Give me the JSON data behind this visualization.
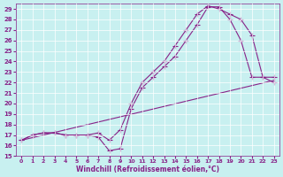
{
  "xlabel": "Windchill (Refroidissement éolien,°C)",
  "bg_color": "#c8f0f0",
  "line_color": "#882288",
  "xlim": [
    -0.5,
    23.5
  ],
  "ylim": [
    15,
    29.5
  ],
  "xticks": [
    0,
    1,
    2,
    3,
    4,
    5,
    6,
    7,
    8,
    9,
    10,
    11,
    12,
    13,
    14,
    15,
    16,
    17,
    18,
    19,
    20,
    21,
    22,
    23
  ],
  "yticks": [
    15,
    16,
    17,
    18,
    19,
    20,
    21,
    22,
    23,
    24,
    25,
    26,
    27,
    28,
    29
  ],
  "series1_x": [
    0,
    1,
    2,
    3,
    4,
    5,
    6,
    7,
    8,
    9,
    10,
    11,
    12,
    13,
    14,
    15,
    16,
    17,
    18,
    19,
    20,
    21,
    22,
    23
  ],
  "series1_y": [
    16.5,
    17.0,
    17.2,
    17.2,
    17.0,
    17.0,
    17.0,
    16.8,
    15.5,
    15.7,
    19.5,
    21.5,
    22.5,
    23.5,
    24.5,
    26.0,
    27.5,
    29.2,
    29.2,
    28.0,
    26.0,
    22.5,
    22.5,
    22.0
  ],
  "series2_x": [
    0,
    1,
    2,
    3,
    4,
    5,
    6,
    7,
    8,
    9,
    10,
    11,
    12,
    13,
    14,
    15,
    16,
    17,
    18,
    19,
    20,
    21,
    22,
    23
  ],
  "series2_y": [
    16.5,
    17.0,
    17.2,
    17.2,
    17.0,
    17.0,
    17.0,
    17.2,
    16.5,
    17.5,
    20.0,
    22.0,
    23.0,
    24.0,
    25.5,
    27.0,
    28.5,
    29.3,
    29.0,
    28.5,
    28.0,
    26.5,
    22.5,
    22.5
  ],
  "series3_x": [
    0,
    23
  ],
  "series3_y": [
    16.5,
    22.2
  ],
  "marker": "+",
  "markersize": 4,
  "lw": 0.8
}
